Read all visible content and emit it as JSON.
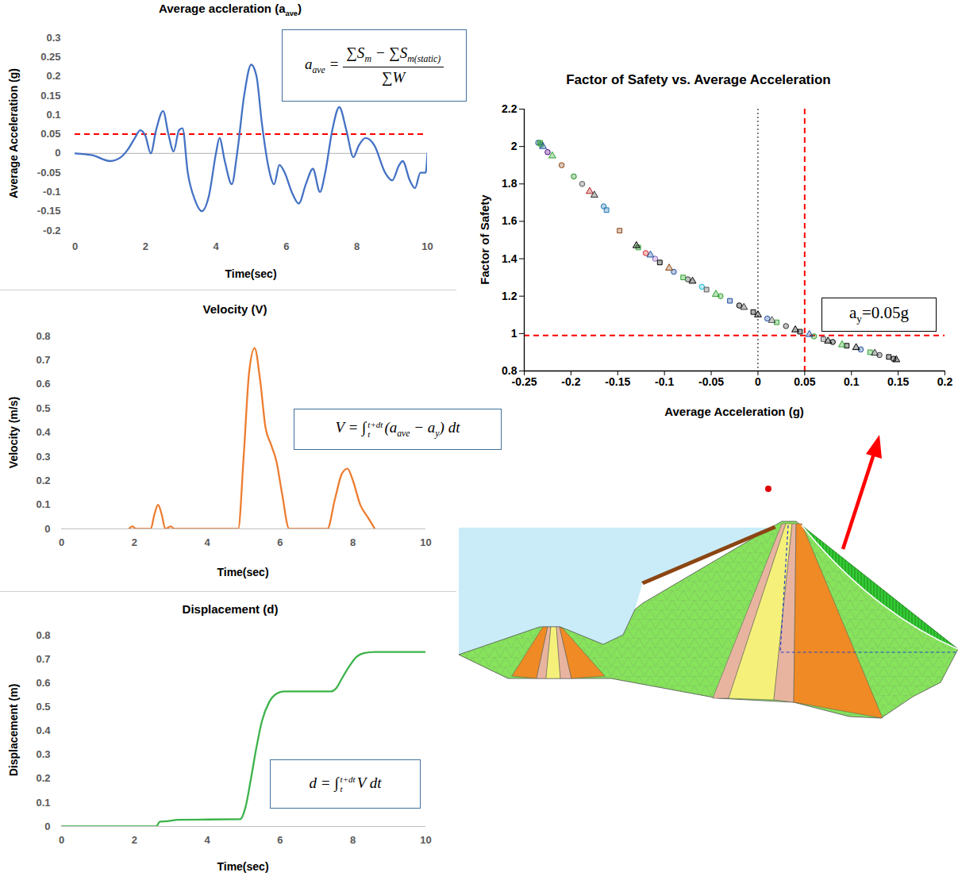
{
  "chart_data": [
    {
      "type": "line",
      "title": [
        "Average accleration (a",
        {
          "sub": "ave"
        },
        ")"
      ],
      "xlabel": "Time(sec)",
      "ylabel": "Average Acceleration (g)",
      "x": [
        0,
        0.5,
        1.0,
        1.3,
        1.5,
        1.7,
        1.85,
        2.0,
        2.15,
        2.3,
        2.5,
        2.65,
        2.8,
        2.95,
        3.05,
        3.2,
        3.4,
        3.6,
        3.8,
        4.0,
        4.1,
        4.25,
        4.45,
        4.6,
        4.8,
        5.0,
        5.15,
        5.3,
        5.5,
        5.65,
        5.8,
        5.95,
        6.15,
        6.35,
        6.55,
        6.75,
        6.95,
        7.1,
        7.3,
        7.5,
        7.7,
        7.9,
        8.05,
        8.25,
        8.5,
        8.8,
        9.0,
        9.2,
        9.3,
        9.5,
        9.65,
        9.8,
        9.95,
        10
      ],
      "values": [
        0,
        -0.005,
        -0.02,
        -0.01,
        0.01,
        0.04,
        0.06,
        0.045,
        0.0,
        0.06,
        0.11,
        0.05,
        0.005,
        0.06,
        0.065,
        -0.05,
        -0.12,
        -0.15,
        -0.11,
        0.0,
        0.04,
        -0.02,
        -0.08,
        0.0,
        0.15,
        0.23,
        0.2,
        0.08,
        -0.04,
        -0.08,
        -0.03,
        -0.05,
        -0.1,
        -0.13,
        -0.08,
        -0.04,
        -0.1,
        -0.05,
        0.06,
        0.12,
        0.06,
        -0.01,
        0.02,
        0.04,
        0.02,
        -0.05,
        -0.07,
        -0.03,
        -0.02,
        -0.07,
        -0.09,
        -0.05,
        -0.05,
        0.0
      ],
      "color": "#4472c4",
      "xlim": [
        0,
        10
      ],
      "xticks": [
        0,
        2,
        4,
        6,
        8,
        10
      ],
      "ylim": [
        -0.2,
        0.3
      ],
      "yticks": [
        -0.2,
        -0.15,
        -0.1,
        -0.05,
        0,
        0.05,
        0.1,
        0.15,
        0.2,
        0.25,
        0.3
      ],
      "grid": false,
      "reference_lines": [
        {
          "y": 0,
          "color": "#bfbfbf",
          "line_style": "solid"
        },
        {
          "y": 0.05,
          "color": "#ff0000",
          "line_style": "dashed"
        }
      ],
      "annotations": [
        {
          "lhs": [
            "a",
            {
              "sub": "ave"
            },
            " ="
          ],
          "numerator": [
            "∑S",
            {
              "sub": "m"
            },
            " − ∑S",
            {
              "sub": "m(static)"
            }
          ],
          "denominator": [
            "∑W"
          ]
        }
      ]
    },
    {
      "type": "line",
      "title": [
        "Velocity (V)"
      ],
      "xlabel": "Time(sec)",
      "ylabel": "Velocity (m/s)",
      "x": [
        1.85,
        1.95,
        2.05,
        2.45,
        2.55,
        2.65,
        2.75,
        2.85,
        3.0,
        3.1,
        4.85,
        5.0,
        5.15,
        5.3,
        5.45,
        5.6,
        5.75,
        5.9,
        6.05,
        6.25,
        7.3,
        7.5,
        7.7,
        7.85,
        8.0,
        8.2,
        8.4,
        8.6
      ],
      "values": [
        0,
        0.01,
        0,
        0,
        0.06,
        0.1,
        0.06,
        0,
        0.01,
        0,
        0,
        0.3,
        0.65,
        0.75,
        0.62,
        0.42,
        0.35,
        0.28,
        0.15,
        0,
        0,
        0.12,
        0.23,
        0.25,
        0.2,
        0.1,
        0.05,
        0
      ],
      "color": "#ed7d31",
      "xlim": [
        0,
        10
      ],
      "xticks": [
        0,
        2,
        4,
        6,
        8,
        10
      ],
      "ylim": [
        0,
        0.8
      ],
      "yticks": [
        0,
        0.1,
        0.2,
        0.3,
        0.4,
        0.5,
        0.6,
        0.7,
        0.8
      ],
      "grid": false,
      "reference_lines": [
        {
          "y": 0,
          "color": "#bfbfbf",
          "line_style": "solid"
        }
      ],
      "annotations": [
        {
          "text": [
            "V = ∫",
            {
              "lower": "t",
              "upper": "t+dt"
            },
            "(a",
            {
              "sub": "ave"
            },
            " − a",
            {
              "sub": "y"
            },
            ") dt"
          ]
        }
      ]
    },
    {
      "type": "line",
      "title": [
        "Displacement (d)"
      ],
      "xlabel": "Time(sec)",
      "ylabel": "Displacement (m)",
      "x": [
        0,
        2.6,
        2.7,
        2.9,
        3.2,
        4.9,
        5.05,
        5.2,
        5.35,
        5.5,
        5.7,
        5.9,
        6.1,
        7.4,
        7.55,
        7.7,
        7.9,
        8.1,
        8.3,
        8.6,
        10
      ],
      "values": [
        0,
        0,
        0.02,
        0.022,
        0.028,
        0.03,
        0.08,
        0.2,
        0.33,
        0.44,
        0.52,
        0.555,
        0.565,
        0.565,
        0.58,
        0.62,
        0.67,
        0.71,
        0.725,
        0.73,
        0.73
      ],
      "color": "#3cb34a",
      "xlim": [
        0,
        10
      ],
      "xticks": [
        0,
        2,
        4,
        6,
        8,
        10
      ],
      "ylim": [
        0,
        0.8
      ],
      "yticks": [
        0,
        0.1,
        0.2,
        0.3,
        0.4,
        0.5,
        0.6,
        0.7,
        0.8
      ],
      "grid": false,
      "reference_lines": [
        {
          "y": 0,
          "color": "#bfbfbf",
          "line_style": "solid"
        }
      ],
      "annotations": [
        {
          "text": [
            "d = ∫",
            {
              "lower": "t",
              "upper": "t+dt"
            },
            "V dt"
          ]
        }
      ]
    },
    {
      "type": "scatter",
      "title": [
        "Factor of Safety vs. Average Acceleration"
      ],
      "xlabel": "Average Acceleration (g)",
      "ylabel": "Factor of Safety",
      "xlim": [
        -0.25,
        0.2
      ],
      "xticks": [
        -0.25,
        -0.2,
        -0.15,
        -0.1,
        -0.05,
        0,
        0.05,
        0.1,
        0.15,
        0.2
      ],
      "ylim": [
        0.8,
        2.2
      ],
      "yticks": [
        0.8,
        1,
        1.2,
        1.4,
        1.6,
        1.8,
        2,
        2.2
      ],
      "grid": false,
      "series": [
        {
          "marker": "circle",
          "x": [
            -0.235,
            -0.232,
            -0.225,
            -0.21,
            -0.197,
            -0.188,
            -0.165,
            -0.12,
            -0.11,
            -0.09,
            -0.075,
            -0.06,
            -0.04,
            -0.02,
            0.01,
            0.03,
            0.06,
            0.08,
            0.11,
            0.13,
            0.145
          ],
          "values": [
            2.02,
            2.01,
            1.97,
            1.9,
            1.84,
            1.8,
            1.68,
            1.43,
            1.4,
            1.33,
            1.29,
            1.25,
            1.2,
            1.15,
            1.08,
            1.04,
            0.985,
            0.955,
            0.915,
            0.885,
            0.865
          ],
          "colors": [
            "#1f4e9e",
            "#2ca02c",
            "#4b0082",
            "#8b4513",
            "#228b22",
            "#555555",
            "#1f77b4",
            "#d62728",
            "#9467bd",
            "#1f4e9e",
            "#333333",
            "#17becf",
            "#2ca02c",
            "#000000",
            "#1f4e9e",
            "#333333",
            "#2ca02c",
            "#000000",
            "#1f4e9e",
            "#333333",
            "#000000"
          ]
        },
        {
          "marker": "square",
          "x": [
            -0.233,
            -0.162,
            -0.148,
            -0.128,
            -0.105,
            -0.08,
            -0.055,
            -0.03,
            -0.005,
            0.02,
            0.045,
            0.07,
            0.095,
            0.12,
            0.14
          ],
          "values": [
            2.02,
            1.66,
            1.55,
            1.46,
            1.38,
            1.3,
            1.235,
            1.175,
            1.115,
            1.06,
            1.01,
            0.97,
            0.935,
            0.9,
            0.875
          ],
          "colors": [
            "#2ca02c",
            "#1f77b4",
            "#8b4513",
            "#2ca02c",
            "#000000",
            "#2ca02c",
            "#555555",
            "#1f4e9e",
            "#000000",
            "#2ca02c",
            "#000000",
            "#555555",
            "#000000",
            "#2ca02c",
            "#000000"
          ]
        },
        {
          "marker": "triangle",
          "x": [
            -0.23,
            -0.22,
            -0.18,
            -0.175,
            -0.13,
            -0.115,
            -0.095,
            -0.07,
            -0.045,
            -0.015,
            0.0,
            0.015,
            0.04,
            0.055,
            0.075,
            0.09,
            0.105,
            0.125,
            0.148
          ],
          "values": [
            2.0,
            1.95,
            1.76,
            1.74,
            1.47,
            1.42,
            1.35,
            1.28,
            1.21,
            1.14,
            1.1,
            1.07,
            1.02,
            0.995,
            0.96,
            0.94,
            0.925,
            0.895,
            0.86
          ],
          "colors": [
            "#1f4e9e",
            "#2ca02c",
            "#b22222",
            "#333333",
            "#000000",
            "#1f4e9e",
            "#8b4513",
            "#000000",
            "#2ca02c",
            "#333333",
            "#000000",
            "#555555",
            "#000000",
            "#1f4e9e",
            "#000000",
            "#2ca02c",
            "#000000",
            "#333333",
            "#000000"
          ]
        }
      ],
      "reference_lines": [
        {
          "x": 0,
          "color": "#000000",
          "line_style": "dotted"
        },
        {
          "x": 0.05,
          "color": "#ff0000",
          "line_style": "dashed"
        },
        {
          "y": 0.99,
          "color": "#ff0000",
          "line_style": "dashed"
        }
      ],
      "annotations": [
        {
          "text": [
            "a",
            {
              "sub": "y"
            },
            "=0.05g"
          ]
        }
      ]
    }
  ]
}
